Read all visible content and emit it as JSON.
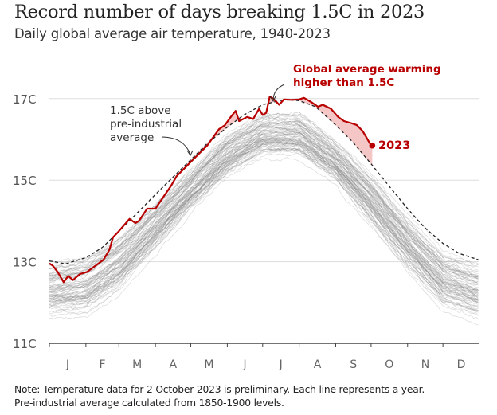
{
  "title": "Record number of days breaking 1.5C in 2023",
  "subtitle": "Daily global average air temperature, 1940-2023",
  "note": [
    "Note: Temperature data for 2 October 2023 is preliminary. Each line represents a year.",
    "Pre-industrial average calculated from 1850-1900 levels."
  ],
  "chart_data": {
    "type": "line",
    "title": "Record number of days breaking 1.5C in 2023",
    "subtitle": "Daily global average air temperature, 1940-2023",
    "xlabel": "",
    "ylabel": "",
    "x_ticks": [
      "J",
      "F",
      "M",
      "A",
      "M",
      "J",
      "J",
      "A",
      "S",
      "O",
      "N",
      "D"
    ],
    "y_ticks": [
      11,
      13,
      15,
      17
    ],
    "y_tick_labels": [
      "11C",
      "13C",
      "15C",
      "17C"
    ],
    "ylim": [
      11,
      17.6
    ],
    "xlim": [
      "01-01",
      "12-31"
    ],
    "grid": "horizontal",
    "colors": {
      "highlight": "#b80000",
      "highlight_fill": "#f2b8b8",
      "other_years": "#999999",
      "threshold": "#222222",
      "grid": "#dddddd"
    },
    "annotations": {
      "warming": [
        "Global average warming",
        "higher than 1.5C"
      ],
      "threshold": [
        "1.5C above",
        "pre-industrial",
        "average"
      ],
      "series_label": "2023"
    },
    "series": [
      {
        "name": "2023",
        "style": "solid-red",
        "points": [
          [
            "01-01",
            12.96
          ],
          [
            "01-04",
            12.9
          ],
          [
            "01-08",
            12.75
          ],
          [
            "01-13",
            12.5
          ],
          [
            "01-17",
            12.65
          ],
          [
            "01-21",
            12.55
          ],
          [
            "01-27",
            12.7
          ],
          [
            "02-02",
            12.75
          ],
          [
            "02-09",
            12.9
          ],
          [
            "02-16",
            13.05
          ],
          [
            "02-21",
            13.3
          ],
          [
            "02-24",
            13.6
          ],
          [
            "03-01",
            13.75
          ],
          [
            "03-10",
            14.05
          ],
          [
            "03-15",
            13.95
          ],
          [
            "03-18",
            14.0
          ],
          [
            "03-25",
            14.3
          ],
          [
            "04-01",
            14.3
          ],
          [
            "04-08",
            14.6
          ],
          [
            "04-14",
            14.85
          ],
          [
            "04-19",
            15.1
          ],
          [
            "04-26",
            15.3
          ],
          [
            "05-01",
            15.45
          ],
          [
            "05-08",
            15.65
          ],
          [
            "05-15",
            15.85
          ],
          [
            "05-20",
            16.05
          ],
          [
            "05-25",
            16.25
          ],
          [
            "05-30",
            16.35
          ],
          [
            "06-04",
            16.55
          ],
          [
            "06-08",
            16.7
          ],
          [
            "06-11",
            16.45
          ],
          [
            "06-18",
            16.55
          ],
          [
            "06-23",
            16.5
          ],
          [
            "06-28",
            16.75
          ],
          [
            "07-01",
            16.6
          ],
          [
            "07-04",
            16.65
          ],
          [
            "07-07",
            17.05
          ],
          [
            "07-10",
            17.0
          ],
          [
            "07-15",
            16.85
          ],
          [
            "07-19",
            16.98
          ],
          [
            "07-25",
            16.97
          ],
          [
            "08-01",
            16.98
          ],
          [
            "08-05",
            17.02
          ],
          [
            "08-11",
            16.92
          ],
          [
            "08-17",
            16.8
          ],
          [
            "08-21",
            16.85
          ],
          [
            "08-28",
            16.75
          ],
          [
            "09-03",
            16.55
          ],
          [
            "09-08",
            16.45
          ],
          [
            "09-14",
            16.4
          ],
          [
            "09-19",
            16.35
          ],
          [
            "09-24",
            16.2
          ],
          [
            "09-27",
            16.05
          ],
          [
            "09-30",
            15.9
          ],
          [
            "10-02",
            15.85
          ]
        ]
      },
      {
        "name": "1.5C above pre-industrial average",
        "style": "dashed",
        "points": [
          [
            "01-01",
            13.02
          ],
          [
            "01-15",
            12.95
          ],
          [
            "02-01",
            13.1
          ],
          [
            "02-15",
            13.35
          ],
          [
            "03-01",
            13.75
          ],
          [
            "03-15",
            14.15
          ],
          [
            "04-01",
            14.65
          ],
          [
            "04-15",
            15.05
          ],
          [
            "05-01",
            15.5
          ],
          [
            "05-15",
            15.9
          ],
          [
            "06-01",
            16.3
          ],
          [
            "06-15",
            16.6
          ],
          [
            "07-01",
            16.85
          ],
          [
            "07-20",
            16.98
          ],
          [
            "08-01",
            16.95
          ],
          [
            "08-15",
            16.8
          ],
          [
            "09-01",
            16.35
          ],
          [
            "09-15",
            15.95
          ],
          [
            "10-01",
            15.4
          ],
          [
            "10-15",
            14.9
          ],
          [
            "11-01",
            14.3
          ],
          [
            "11-15",
            13.85
          ],
          [
            "12-01",
            13.45
          ],
          [
            "12-15",
            13.2
          ],
          [
            "12-31",
            13.05
          ]
        ]
      }
    ],
    "other_years": {
      "years": "1940-2022",
      "range_low": [
        [
          "01-01",
          11.6
        ],
        [
          "02-01",
          11.6
        ],
        [
          "03-01",
          12.2
        ],
        [
          "04-01",
          13.2
        ],
        [
          "05-01",
          14.2
        ],
        [
          "06-01",
          15.0
        ],
        [
          "07-01",
          15.5
        ],
        [
          "08-01",
          15.5
        ],
        [
          "09-01",
          14.9
        ],
        [
          "10-01",
          13.8
        ],
        [
          "11-01",
          12.7
        ],
        [
          "12-01",
          11.8
        ],
        [
          "12-31",
          11.5
        ]
      ],
      "range_high": [
        [
          "01-01",
          13.0
        ],
        [
          "02-01",
          13.2
        ],
        [
          "03-01",
          13.7
        ],
        [
          "04-01",
          14.5
        ],
        [
          "05-01",
          15.3
        ],
        [
          "06-01",
          16.2
        ],
        [
          "07-01",
          16.7
        ],
        [
          "08-01",
          16.7
        ],
        [
          "09-01",
          16.0
        ],
        [
          "10-01",
          15.2
        ],
        [
          "11-01",
          14.2
        ],
        [
          "12-01",
          13.3
        ],
        [
          "12-31",
          13.0
        ]
      ]
    }
  }
}
